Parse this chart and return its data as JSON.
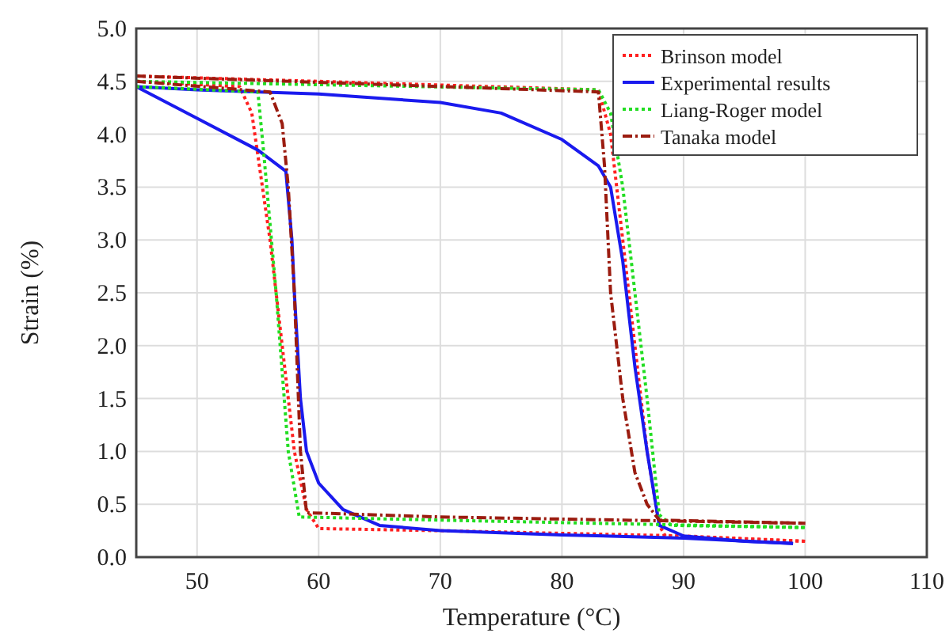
{
  "chart_data": {
    "type": "line",
    "xlabel": "Temperature (°C)",
    "ylabel": "Strain (%)",
    "xlim": [
      45,
      110
    ],
    "ylim": [
      0,
      5
    ],
    "xticks": [
      50,
      60,
      70,
      80,
      90,
      100,
      110
    ],
    "yticks": [
      {
        "value": 0,
        "label": "0.0"
      },
      {
        "value": 0.5,
        "label": "0.5"
      },
      {
        "value": 1,
        "label": "1.0"
      },
      {
        "value": 1.5,
        "label": "1.5"
      },
      {
        "value": 2,
        "label": "2.0"
      },
      {
        "value": 2.5,
        "label": "2.5"
      },
      {
        "value": 3,
        "label": "3.0"
      },
      {
        "value": 3.5,
        "label": "3.5"
      },
      {
        "value": 4,
        "label": "4.0"
      },
      {
        "value": 4.5,
        "label": "4.5"
      },
      {
        "value": 5,
        "label": "5.0"
      }
    ],
    "grid": true,
    "legend": "top right",
    "series": [
      {
        "name": "Brinson model",
        "color": "#ff2020",
        "line_style": "dotted",
        "x": [
          45,
          60,
          83,
          84,
          85,
          86,
          87,
          88,
          88.5,
          100
        ],
        "values": [
          4.55,
          4.5,
          4.42,
          4.0,
          3.0,
          2.0,
          1.0,
          0.3,
          0.2,
          0.15
        ]
      },
      {
        "color": "#ff2020",
        "line_style": "dotted",
        "x": [
          45,
          53.5,
          54.5,
          55,
          56,
          57,
          58,
          59,
          60,
          70,
          90,
          100
        ],
        "values": [
          4.5,
          4.45,
          4.2,
          3.8,
          3.0,
          2.0,
          1.0,
          0.45,
          0.27,
          0.25,
          0.2,
          0.15
        ]
      },
      {
        "name": "Experimental results",
        "color": "#1a1aee",
        "line_style": "solid",
        "x": [
          45,
          50,
          60,
          70,
          75,
          80,
          83,
          84,
          85,
          86,
          87,
          88,
          90,
          95,
          99
        ],
        "values": [
          4.45,
          4.42,
          4.38,
          4.3,
          4.2,
          3.95,
          3.7,
          3.5,
          2.8,
          1.8,
          1.0,
          0.3,
          0.2,
          0.15,
          0.13
        ]
      },
      {
        "color": "#1a1aee",
        "line_style": "solid",
        "x": [
          45,
          50,
          55,
          57.3,
          57.8,
          58,
          58.5,
          59,
          60,
          62,
          65,
          70,
          80,
          90,
          99
        ],
        "values": [
          4.45,
          4.15,
          3.85,
          3.65,
          3.0,
          2.5,
          1.5,
          1.0,
          0.7,
          0.45,
          0.3,
          0.25,
          0.21,
          0.18,
          0.13
        ]
      },
      {
        "name": "Liang-Roger model",
        "color": "#22dd22",
        "line_style": "dotted",
        "x": [
          45,
          83,
          84,
          85,
          86,
          87,
          88,
          89,
          100
        ],
        "values": [
          4.5,
          4.42,
          4.2,
          3.5,
          2.5,
          1.5,
          0.4,
          0.3,
          0.28
        ]
      },
      {
        "color": "#22dd22",
        "line_style": "dotted",
        "x": [
          45,
          55,
          55.5,
          56.5,
          57.5,
          58.4,
          70,
          100
        ],
        "values": [
          4.45,
          4.4,
          3.8,
          2.5,
          1.0,
          0.38,
          0.35,
          0.28
        ]
      },
      {
        "name": "Tanaka model",
        "color": "#9b1c10",
        "line_style": "dashdot",
        "x": [
          45,
          83,
          83.5,
          84,
          85,
          86,
          87,
          88,
          100
        ],
        "values": [
          4.55,
          4.4,
          3.7,
          2.5,
          1.5,
          0.8,
          0.5,
          0.35,
          0.32
        ]
      },
      {
        "color": "#9b1c10",
        "line_style": "dashdot",
        "x": [
          45,
          56,
          57,
          57.5,
          58,
          58.5,
          59,
          70,
          100
        ],
        "values": [
          4.5,
          4.4,
          4.1,
          3.5,
          2.5,
          1.0,
          0.42,
          0.38,
          0.32
        ]
      }
    ]
  }
}
